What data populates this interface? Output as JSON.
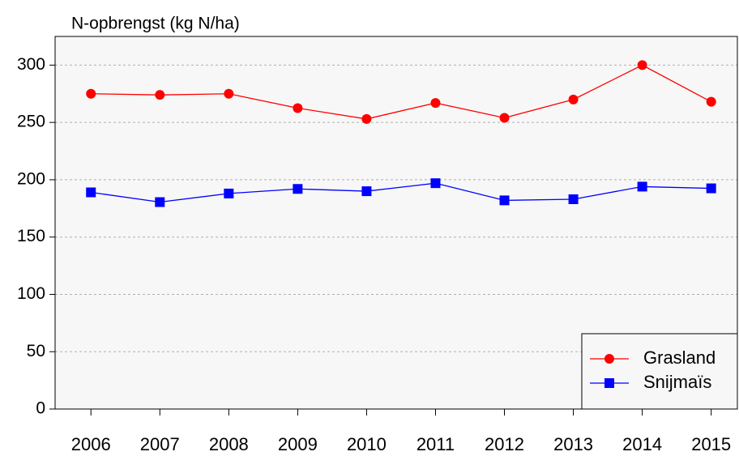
{
  "chart_data": {
    "type": "line",
    "ylabel": "N-opbrengst (kg N/ha)",
    "x": [
      2006,
      2007,
      2008,
      2009,
      2010,
      2011,
      2012,
      2013,
      2014,
      2015
    ],
    "series": [
      {
        "name": "Grasland",
        "color": "#ff0000",
        "marker": "circle",
        "values": [
          275,
          274,
          275,
          262.5,
          253,
          267,
          254,
          270,
          300,
          268
        ]
      },
      {
        "name": "Snijmaïs",
        "color": "#0000ff",
        "marker": "square",
        "values": [
          189,
          180.5,
          188,
          192,
          190,
          197,
          182,
          183,
          194,
          192.5
        ]
      }
    ],
    "xlim": [
      2005.48,
      2015.38
    ],
    "xticks": [
      2006,
      2007,
      2008,
      2009,
      2010,
      2011,
      2012,
      2013,
      2014,
      2015
    ],
    "ylim": [
      0,
      325
    ],
    "yticks": [
      0,
      50,
      100,
      150,
      200,
      250,
      300
    ],
    "grid": true,
    "legend": "bottom-right"
  }
}
